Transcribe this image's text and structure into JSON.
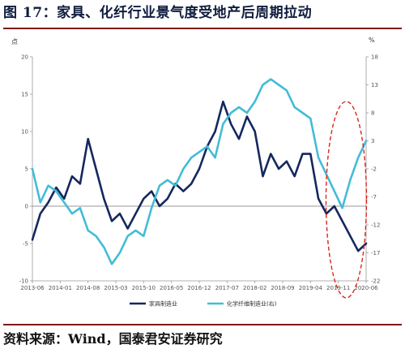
{
  "title": "图 17：家具、化纤行业景气度受地产后周期拉动",
  "source": "资料来源：Wind，国泰君安证券研究",
  "chart_data": {
    "type": "line",
    "left_unit": "点",
    "right_unit": "%",
    "x_ticks": [
      "2013-06",
      "2014-01",
      "2014-08",
      "2015-03",
      "2015-10",
      "2016-05",
      "2016-12",
      "2017-07",
      "2018-02",
      "2018-09",
      "2019-04",
      "2019-11",
      "2020-06"
    ],
    "left_axis": {
      "ticks": [
        "20",
        "15",
        "10",
        "5",
        "0",
        "-5",
        "-10"
      ],
      "ylim": [
        -10,
        20
      ]
    },
    "right_axis": {
      "ticks": [
        "18",
        "13",
        "8",
        "3",
        "-2",
        "-7",
        "-12",
        "-17",
        "-22"
      ],
      "ylim": [
        -22,
        18
      ]
    },
    "colors": {
      "furniture": "#14275e",
      "chemfiber": "#43bcd6",
      "ellipse": "#d9261c"
    },
    "series": [
      {
        "name": "家具制造业",
        "axis": "left",
        "color": "#14275e",
        "x": [
          "2013-06",
          "2013-08",
          "2013-10",
          "2013-12",
          "2014-02",
          "2014-04",
          "2014-06",
          "2014-08",
          "2014-10",
          "2014-12",
          "2015-02",
          "2015-04",
          "2015-06",
          "2015-08",
          "2015-10",
          "2015-12",
          "2016-02",
          "2016-04",
          "2016-06",
          "2016-08",
          "2016-10",
          "2016-12",
          "2017-02",
          "2017-04",
          "2017-06",
          "2017-08",
          "2017-10",
          "2017-12",
          "2018-02",
          "2018-04",
          "2018-06",
          "2018-08",
          "2018-10",
          "2018-12",
          "2019-02",
          "2019-04",
          "2019-06",
          "2019-08",
          "2019-10",
          "2019-12",
          "2020-02",
          "2020-04",
          "2020-06"
        ],
        "values": [
          -4.5,
          -1,
          0.5,
          2.5,
          1,
          4,
          3,
          9,
          5,
          1,
          -2,
          -1,
          -3,
          -1,
          1,
          2,
          0,
          1,
          3,
          2,
          3,
          5,
          8,
          10,
          14,
          11,
          9,
          12,
          10,
          4,
          7,
          5,
          6,
          4,
          7,
          7,
          1,
          -1,
          0,
          -2,
          -4,
          -6,
          -5
        ]
      },
      {
        "name": "化学纤维制造业(右)",
        "axis": "right",
        "color": "#43bcd6",
        "x": [
          "2013-06",
          "2013-08",
          "2013-10",
          "2013-12",
          "2014-02",
          "2014-04",
          "2014-06",
          "2014-08",
          "2014-10",
          "2014-12",
          "2015-02",
          "2015-04",
          "2015-06",
          "2015-08",
          "2015-10",
          "2015-12",
          "2016-02",
          "2016-04",
          "2016-06",
          "2016-08",
          "2016-10",
          "2016-12",
          "2017-02",
          "2017-04",
          "2017-06",
          "2017-08",
          "2017-10",
          "2017-12",
          "2018-02",
          "2018-04",
          "2018-06",
          "2018-08",
          "2018-10",
          "2018-12",
          "2019-02",
          "2019-04",
          "2019-06",
          "2019-08",
          "2019-10",
          "2019-12",
          "2020-02",
          "2020-04",
          "2020-06"
        ],
        "values": [
          -2,
          -8,
          -5,
          -6,
          -8,
          -10,
          -9,
          -13,
          -14,
          -16,
          -19,
          -17,
          -14,
          -13,
          -14,
          -9,
          -5,
          -4,
          -5,
          -2,
          0,
          1,
          2,
          0,
          6,
          8,
          9,
          8,
          10,
          13,
          14,
          13,
          12,
          9,
          8,
          7,
          0,
          -3,
          -6,
          -9,
          -4,
          0,
          3
        ]
      }
    ],
    "legend_position": "bottom"
  }
}
